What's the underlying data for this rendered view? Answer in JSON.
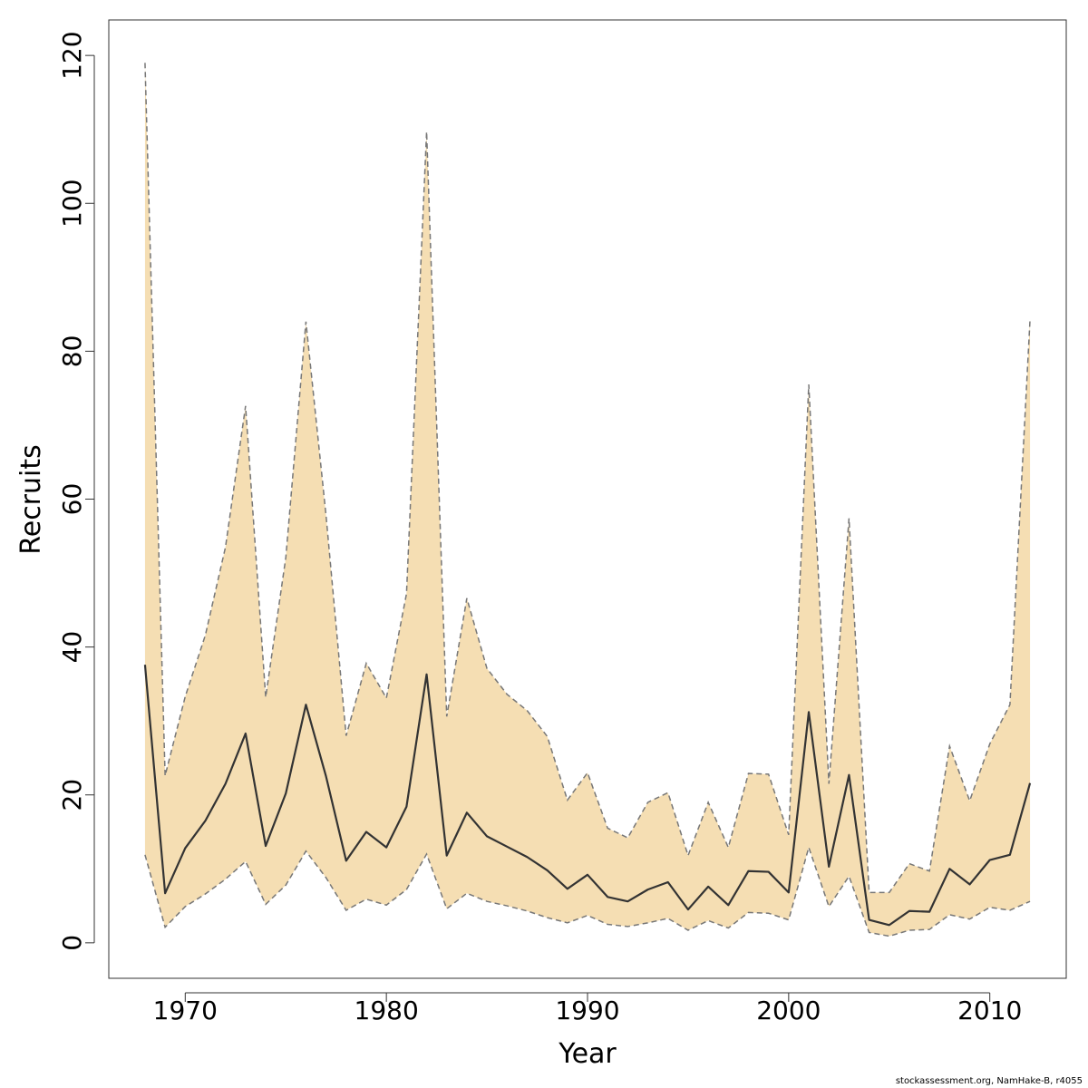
{
  "chart_data": {
    "type": "area",
    "xlabel": "Year",
    "ylabel": "Recruits",
    "xlim": [
      1966.2,
      2013.8
    ],
    "ylim": [
      -4.8,
      124.8
    ],
    "xticks": [
      1970,
      1980,
      1990,
      2000,
      2010
    ],
    "yticks": [
      0,
      20,
      40,
      60,
      80,
      100,
      120
    ],
    "grid": false,
    "band_color": "#F5DEB3",
    "line_color": "#333333",
    "bound_color": "#777777",
    "x": [
      1968,
      1969,
      1970,
      1971,
      1972,
      1973,
      1974,
      1975,
      1976,
      1977,
      1978,
      1979,
      1980,
      1981,
      1982,
      1983,
      1984,
      1985,
      1986,
      1987,
      1988,
      1989,
      1990,
      1991,
      1992,
      1993,
      1994,
      1995,
      1996,
      1997,
      1998,
      1999,
      2000,
      2001,
      2002,
      2003,
      2004,
      2005,
      2006,
      2007,
      2008,
      2009,
      2010,
      2011,
      2012
    ],
    "series": [
      {
        "name": "",
        "style": "solid",
        "values": [
          37.6,
          6.7,
          12.8,
          16.5,
          21.5,
          28.3,
          13.1,
          20.2,
          32.2,
          22.5,
          11.1,
          15.0,
          12.9,
          18.4,
          36.3,
          11.8,
          17.6,
          14.4,
          13.0,
          11.6,
          9.8,
          7.3,
          9.2,
          6.2,
          5.6,
          7.2,
          8.2,
          4.5,
          7.6,
          5.1,
          9.7,
          9.6,
          6.8,
          31.2,
          10.3,
          22.7,
          3.1,
          2.4,
          4.3,
          4.2,
          10.0,
          7.9,
          11.2,
          11.9,
          21.6
        ]
      },
      {
        "name": "",
        "style": "dashed",
        "role": "upper",
        "values": [
          119.0,
          22.6,
          33.3,
          41.6,
          53.5,
          72.6,
          33.2,
          52.1,
          84.0,
          57.8,
          28.0,
          37.8,
          33.1,
          47.2,
          109.7,
          30.6,
          46.6,
          37.1,
          33.6,
          31.4,
          27.9,
          19.3,
          23.0,
          15.5,
          14.2,
          19.0,
          20.3,
          11.8,
          19.0,
          12.9,
          22.9,
          22.8,
          14.6,
          75.5,
          21.5,
          57.4,
          6.8,
          6.8,
          10.7,
          9.7,
          26.6,
          19.2,
          26.9,
          32.2,
          84.3
        ]
      },
      {
        "name": "",
        "style": "dashed",
        "role": "lower",
        "values": [
          11.9,
          2.1,
          4.9,
          6.6,
          8.6,
          11.0,
          5.2,
          7.8,
          12.4,
          8.8,
          4.4,
          5.9,
          5.1,
          7.2,
          12.0,
          4.6,
          6.7,
          5.6,
          5.0,
          4.3,
          3.4,
          2.7,
          3.7,
          2.5,
          2.2,
          2.7,
          3.3,
          1.7,
          3.0,
          2.0,
          4.1,
          4.0,
          3.1,
          12.9,
          4.9,
          9.0,
          1.4,
          0.9,
          1.7,
          1.8,
          3.8,
          3.2,
          4.8,
          4.4,
          5.6
        ]
      }
    ]
  },
  "footer_text": "stockassessment.org, NamHake-B, r4055"
}
